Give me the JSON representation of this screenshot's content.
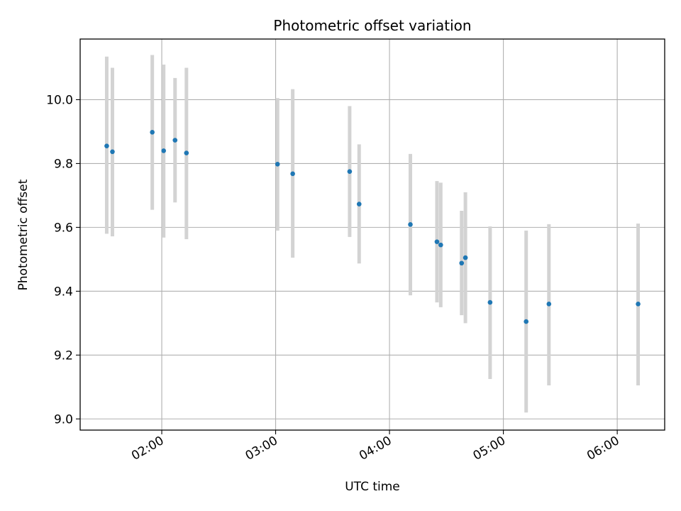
{
  "chart_data": {
    "type": "scatter",
    "title": "Photometric offset variation",
    "xlabel": "UTC time",
    "ylabel": "Photometric offset",
    "x_axis_kind": "time",
    "xlim": [
      "01:17",
      "06:25"
    ],
    "ylim": [
      8.965,
      10.19
    ],
    "x_ticks": [
      "02:00",
      "03:00",
      "04:00",
      "05:00",
      "06:00"
    ],
    "y_ticks": [
      9.0,
      9.2,
      9.4,
      9.6,
      9.8,
      10.0
    ],
    "grid": true,
    "legend": "none",
    "series": [
      {
        "points": [
          {
            "x": "01:31",
            "y": 9.855,
            "ylow": 9.58,
            "yhigh": 10.135
          },
          {
            "x": "01:34",
            "y": 9.837,
            "ylow": 9.572,
            "yhigh": 10.1
          },
          {
            "x": "01:55",
            "y": 9.898,
            "ylow": 9.655,
            "yhigh": 10.14
          },
          {
            "x": "02:01",
            "y": 9.84,
            "ylow": 9.568,
            "yhigh": 10.11
          },
          {
            "x": "02:07",
            "y": 9.873,
            "ylow": 9.678,
            "yhigh": 10.068
          },
          {
            "x": "02:13",
            "y": 9.833,
            "ylow": 9.563,
            "yhigh": 10.1
          },
          {
            "x": "03:01",
            "y": 9.798,
            "ylow": 9.59,
            "yhigh": 10.005
          },
          {
            "x": "03:09",
            "y": 9.768,
            "ylow": 9.505,
            "yhigh": 10.033
          },
          {
            "x": "03:39",
            "y": 9.775,
            "ylow": 9.57,
            "yhigh": 9.98
          },
          {
            "x": "03:44",
            "y": 9.673,
            "ylow": 9.487,
            "yhigh": 9.86
          },
          {
            "x": "04:11",
            "y": 9.609,
            "ylow": 9.387,
            "yhigh": 9.83
          },
          {
            "x": "04:25",
            "y": 9.555,
            "ylow": 9.365,
            "yhigh": 9.745
          },
          {
            "x": "04:27",
            "y": 9.545,
            "ylow": 9.35,
            "yhigh": 9.74
          },
          {
            "x": "04:38",
            "y": 9.488,
            "ylow": 9.325,
            "yhigh": 9.652
          },
          {
            "x": "04:40",
            "y": 9.505,
            "ylow": 9.3,
            "yhigh": 9.71
          },
          {
            "x": "04:53",
            "y": 9.365,
            "ylow": 9.125,
            "yhigh": 9.603
          },
          {
            "x": "05:12",
            "y": 9.305,
            "ylow": 9.02,
            "yhigh": 9.59
          },
          {
            "x": "05:24",
            "y": 9.36,
            "ylow": 9.105,
            "yhigh": 9.61
          },
          {
            "x": "06:11",
            "y": 9.36,
            "ylow": 9.105,
            "yhigh": 9.612
          }
        ]
      }
    ],
    "colors": {
      "marker": "#1f77b4",
      "errorbar": "#d3d3d3",
      "grid": "#b0b0b0",
      "axes": "#000000"
    }
  }
}
